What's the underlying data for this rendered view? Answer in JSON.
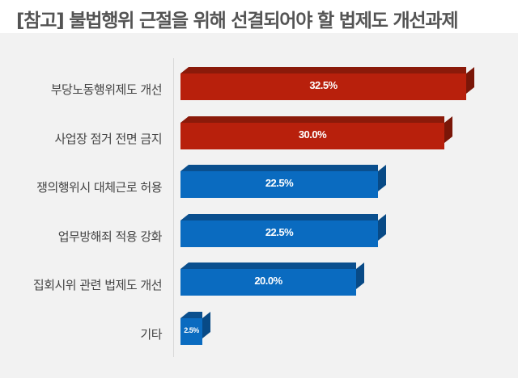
{
  "title": "[참고] 불법행위 근절을 위해 선결되어야 할 법제도 개선과제",
  "chart_data": {
    "type": "bar",
    "orientation": "horizontal",
    "title": "[참고] 불법행위 근절을 위해 선결되어야 할 법제도 개선과제",
    "xlabel": "",
    "ylabel": "",
    "categories": [
      "부당노동행위제도 개선",
      "사업장 점거 전면 금지",
      "쟁의행위시 대체근로 허용",
      "업무방해죄 적용 강화",
      "집회시위 관련 법제도 개선",
      "기타"
    ],
    "values": [
      32.5,
      30.0,
      22.5,
      22.5,
      20.0,
      2.5
    ],
    "value_labels": [
      "32.5%",
      "30.0%",
      "22.5%",
      "22.5%",
      "20.0%",
      "2.5%"
    ],
    "colors": [
      "#b8200c",
      "#b8200c",
      "#0a6bc0",
      "#0a6bc0",
      "#0a6bc0",
      "#0a6bc0"
    ],
    "grid": false,
    "legend": null,
    "style": "3d"
  },
  "rows": [
    {
      "label": "부당노동행위제도 개선",
      "value": 32.5,
      "text": "32.5%",
      "color": "red"
    },
    {
      "label": "사업장 점거 전면 금지",
      "value": 30.0,
      "text": "30.0%",
      "color": "red"
    },
    {
      "label": "쟁의행위시 대체근로 허용",
      "value": 22.5,
      "text": "22.5%",
      "color": "blue"
    },
    {
      "label": "업무방해죄 적용 강화",
      "value": 22.5,
      "text": "22.5%",
      "color": "blue"
    },
    {
      "label": "집회시위 관련 법제도 개선",
      "value": 20.0,
      "text": "20.0%",
      "color": "blue"
    },
    {
      "label": "기타",
      "value": 2.5,
      "text": "2.5%",
      "color": "blue"
    }
  ]
}
